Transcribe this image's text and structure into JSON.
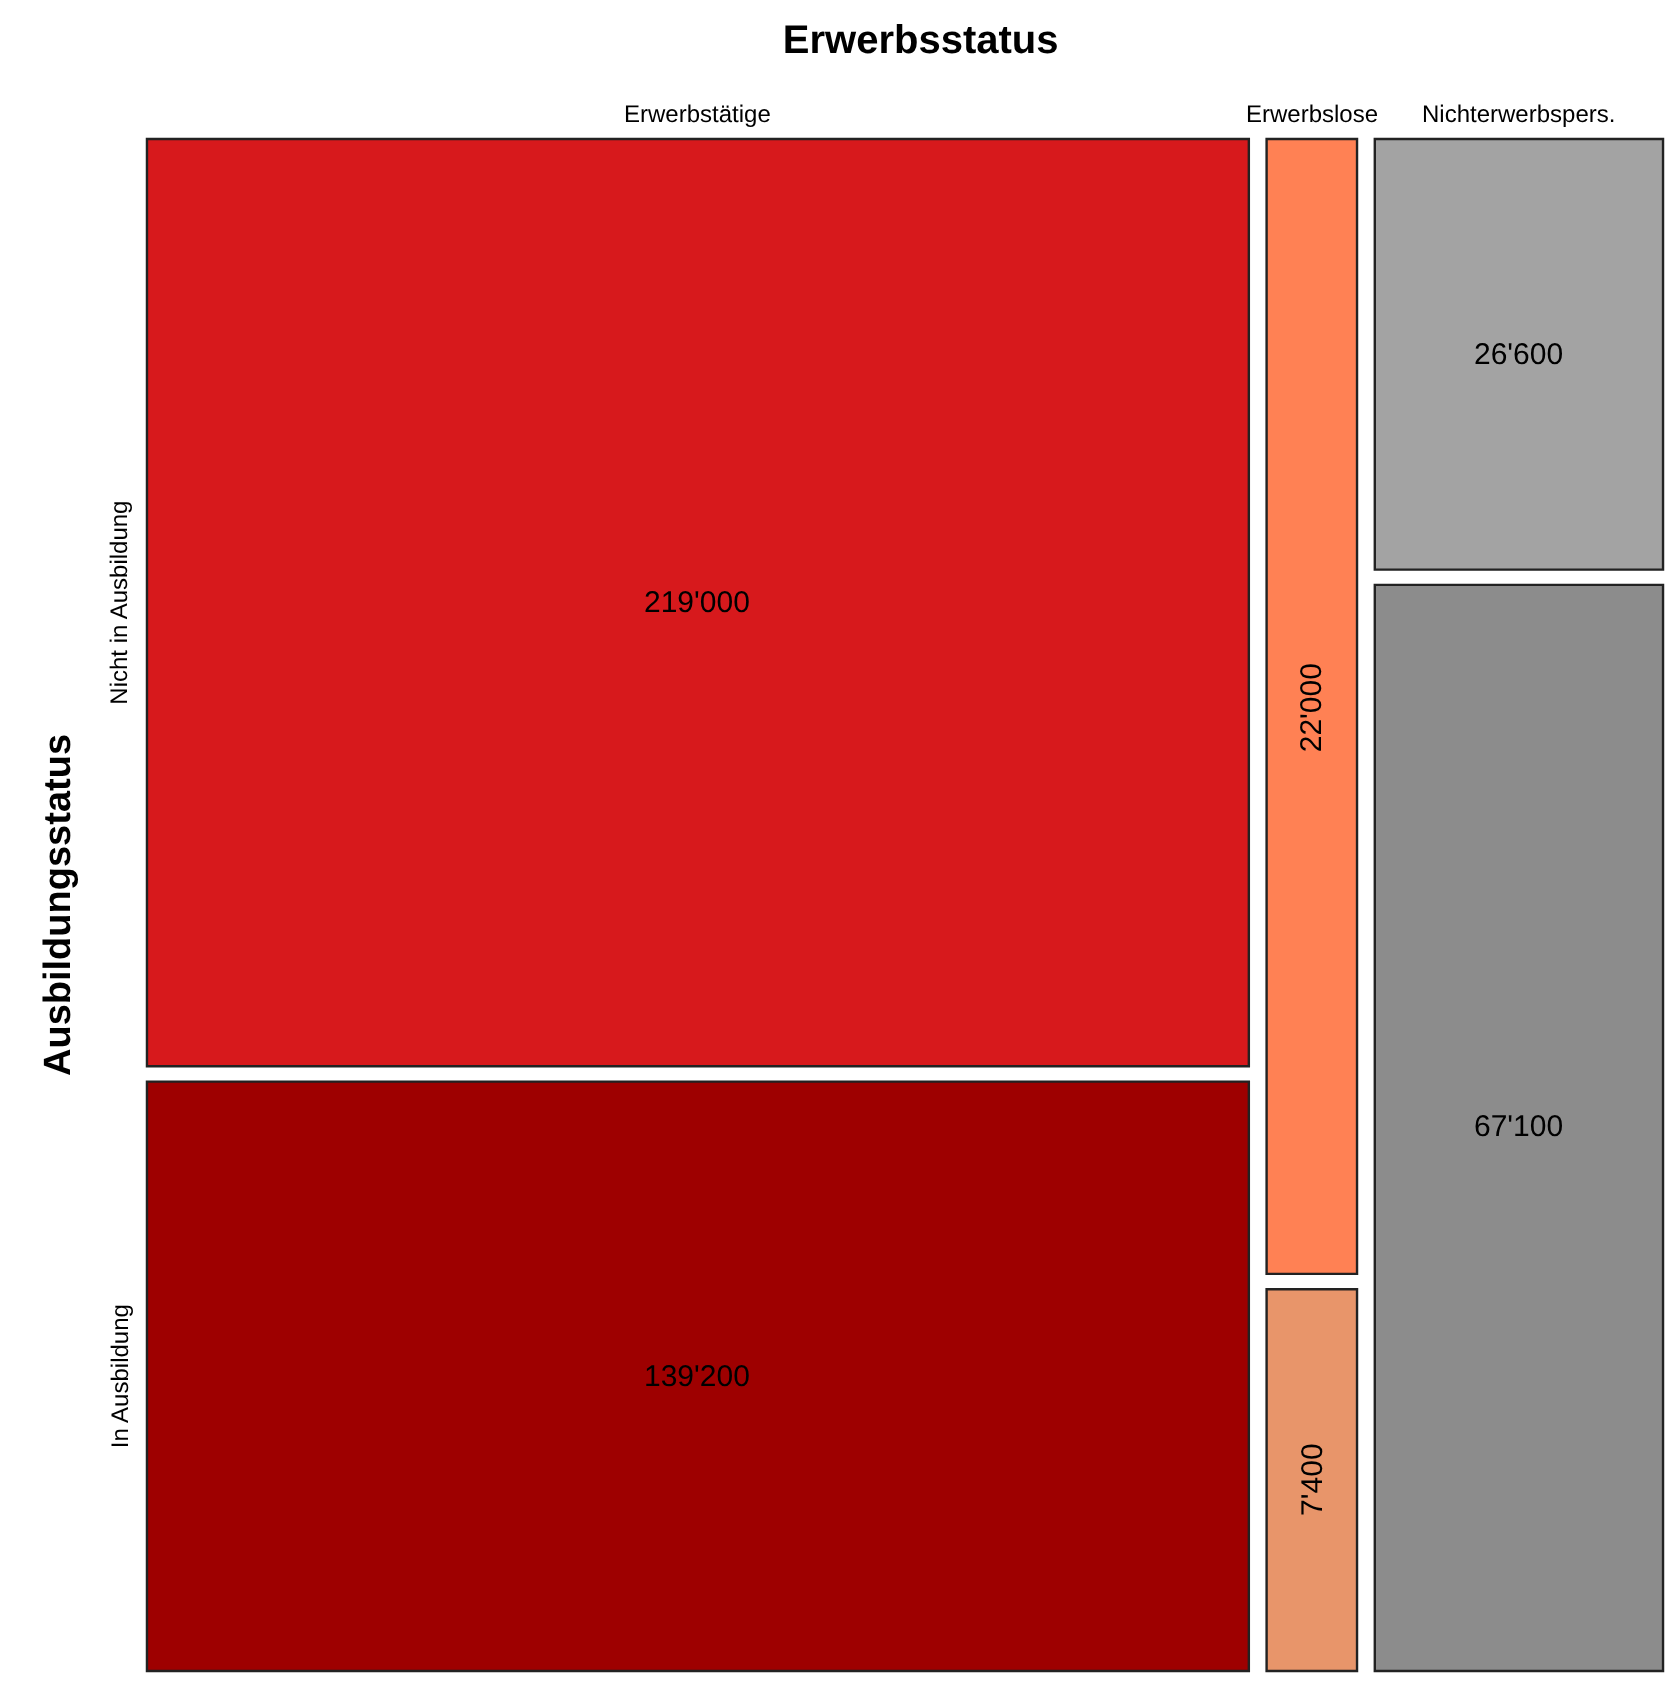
{
  "chart_data": {
    "type": "other",
    "title": "Erwerbsstatus",
    "ylabel": "Ausbildungsstatus",
    "categories": [
      "Erwerbstätige",
      "Erwerbslose",
      "Nichterwerbspers."
    ],
    "series": [
      {
        "name": "Nicht in Ausbildung",
        "values": [
          219000,
          22000,
          26600
        ],
        "colors": [
          "#d7191c",
          "#ff8154",
          "#a3a3a3"
        ],
        "value_labels": [
          "219'000",
          "22'000",
          "26'600"
        ]
      },
      {
        "name": "In Ausbildung",
        "values": [
          139200,
          7400,
          67100
        ],
        "colors": [
          "#9e0000",
          "#e8956a",
          "#8c8c8c"
        ],
        "value_labels": [
          "139'200",
          "7'400",
          "67'100"
        ]
      }
    ]
  }
}
